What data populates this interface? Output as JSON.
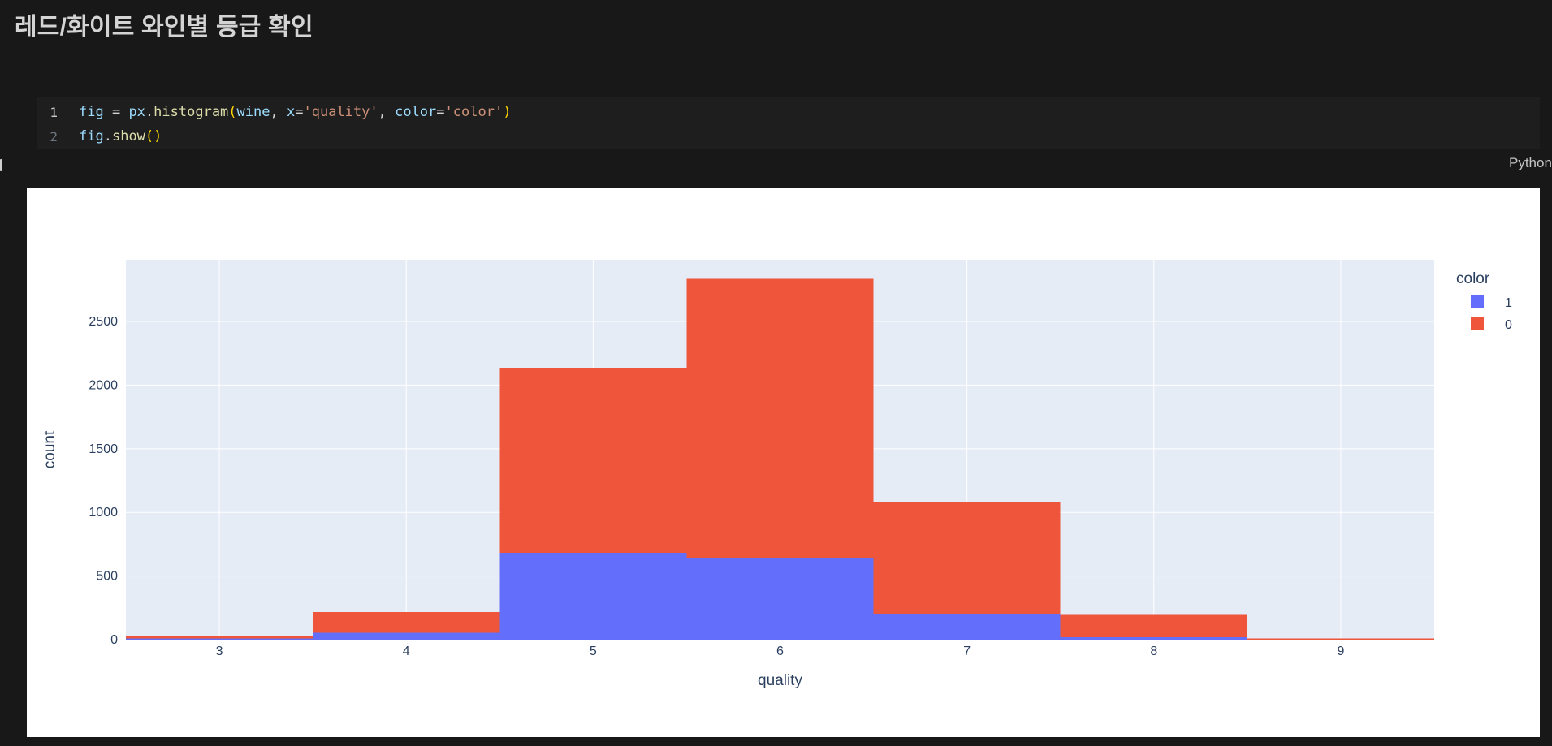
{
  "page": {
    "title": "레드/화이트 와인별 등급 확인",
    "kernel_label": "Python"
  },
  "code_cell": {
    "lines": [
      {
        "number": "1",
        "active": true,
        "tokens": [
          {
            "t": "fig",
            "c": "var"
          },
          {
            "t": " = ",
            "c": "plain"
          },
          {
            "t": "px",
            "c": "var"
          },
          {
            "t": ".",
            "c": "plain"
          },
          {
            "t": "histogram",
            "c": "func"
          },
          {
            "t": "(",
            "c": "paren"
          },
          {
            "t": "wine",
            "c": "var"
          },
          {
            "t": ", ",
            "c": "plain"
          },
          {
            "t": "x",
            "c": "param"
          },
          {
            "t": "=",
            "c": "plain"
          },
          {
            "t": "'quality'",
            "c": "str"
          },
          {
            "t": ", ",
            "c": "plain"
          },
          {
            "t": "color",
            "c": "param"
          },
          {
            "t": "=",
            "c": "plain"
          },
          {
            "t": "'color'",
            "c": "str"
          },
          {
            "t": ")",
            "c": "paren"
          }
        ]
      },
      {
        "number": "2",
        "active": false,
        "tokens": [
          {
            "t": "fig",
            "c": "var"
          },
          {
            "t": ".",
            "c": "plain"
          },
          {
            "t": "show",
            "c": "func"
          },
          {
            "t": "(",
            "c": "paren"
          },
          {
            "t": ")",
            "c": "paren"
          }
        ]
      }
    ]
  },
  "chart_data": {
    "type": "bar",
    "subtype": "stacked-histogram",
    "title": "",
    "xlabel": "quality",
    "ylabel": "count",
    "legend_title": "color",
    "categories": [
      3,
      4,
      5,
      6,
      7,
      8,
      9
    ],
    "series": [
      {
        "name": "1",
        "color": "#636EFA",
        "values": [
          10,
          53,
          681,
          638,
          199,
          18,
          0
        ]
      },
      {
        "name": "0",
        "color": "#EF553B",
        "values": [
          20,
          163,
          1457,
          2198,
          880,
          175,
          5
        ]
      }
    ],
    "xticks": [
      3,
      4,
      5,
      6,
      7,
      8,
      9
    ],
    "yticks": [
      0,
      500,
      1000,
      1500,
      2000,
      2500
    ],
    "xlim": [
      2.5,
      9.5
    ],
    "ylim": [
      0,
      2985
    ],
    "grid": true,
    "legend_position": "right",
    "plot_bg": "#E5ECF6",
    "paper_bg": "#FFFFFF",
    "text_color": "#2a3f5f",
    "grid_color": "#FFFFFF"
  }
}
